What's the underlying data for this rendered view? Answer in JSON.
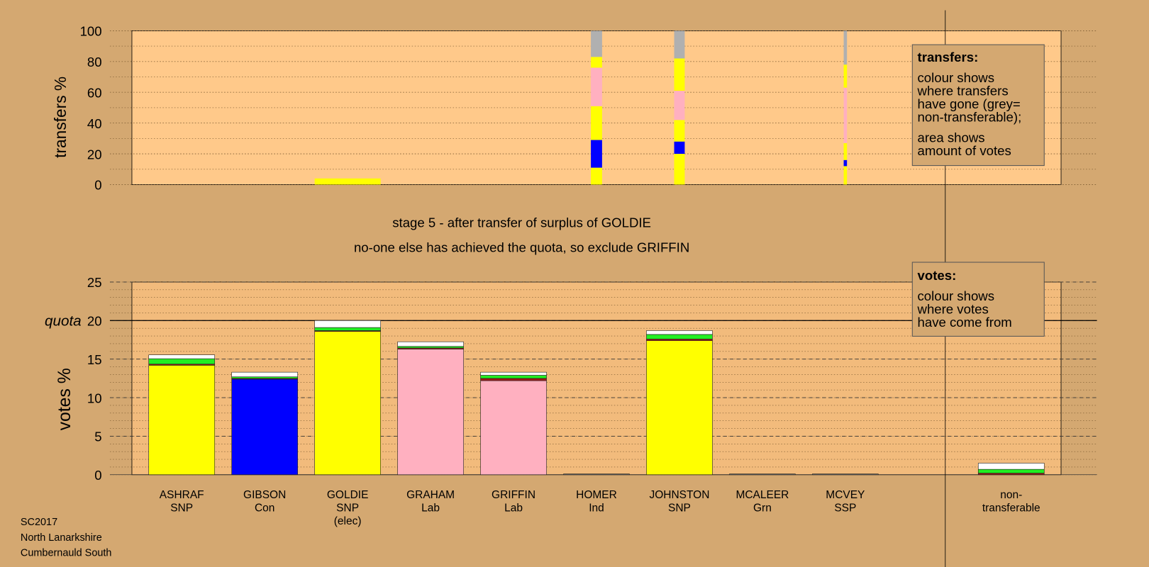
{
  "chart_data": {
    "type": "bar",
    "title": [
      "stage 5 - after transfer of surplus of GOLDIE",
      "no-one else has achieved the quota, so exclude GRIFFIN"
    ],
    "footer": [
      "SC2017",
      "North Lanarkshire",
      "Cumbernauld South"
    ],
    "transfers": {
      "ylabel": "transfers %",
      "ylim": [
        0,
        100
      ],
      "yticks": [
        0,
        20,
        40,
        60,
        80,
        100
      ],
      "minor_step": 10,
      "legend": {
        "title": "transfers:",
        "lines": [
          "colour shows",
          "where transfers",
          "have gone (grey=",
          "non-transferable);"
        ],
        "lines2": [
          "area shows",
          "amount of votes"
        ]
      },
      "columns": [
        {
          "category": 2,
          "width": 1.0,
          "segments": [
            {
              "color": "#ffff00",
              "value": 4
            }
          ]
        },
        {
          "category": 5,
          "width": 0.17,
          "segments": [
            {
              "color": "#ffff00",
              "value": 11
            },
            {
              "color": "#0000ff",
              "value": 18
            },
            {
              "color": "#ffff00",
              "value": 22
            },
            {
              "color": "#ffb0c0",
              "value": 25
            },
            {
              "color": "#ffff00",
              "value": 7
            },
            {
              "color": "#b0b0b0",
              "value": 17
            }
          ]
        },
        {
          "category": 6,
          "width": 0.16,
          "segments": [
            {
              "color": "#ffff00",
              "value": 20
            },
            {
              "color": "#0000ff",
              "value": 8
            },
            {
              "color": "#ffff00",
              "value": 14
            },
            {
              "color": "#ffb0c0",
              "value": 19
            },
            {
              "color": "#ffff00",
              "value": 21
            },
            {
              "color": "#b0b0b0",
              "value": 18
            }
          ]
        },
        {
          "category": 8,
          "width": 0.05,
          "segments": [
            {
              "color": "#ffff00",
              "value": 12
            },
            {
              "color": "#0000ff",
              "value": 4
            },
            {
              "color": "#ffff00",
              "value": 11
            },
            {
              "color": "#ffb0c0",
              "value": 36
            },
            {
              "color": "#ffff00",
              "value": 15
            },
            {
              "color": "#b0b0b0",
              "value": 22
            }
          ]
        }
      ]
    },
    "votes": {
      "ylabel": "votes %",
      "ylim": [
        0,
        25
      ],
      "yticks": [
        0,
        5,
        10,
        15,
        20,
        25
      ],
      "minor_step": 1,
      "quota": {
        "value": 20,
        "label": "quota"
      },
      "legend": {
        "title": "votes:",
        "lines": [
          "colour shows",
          "where votes",
          "have come from"
        ]
      },
      "categories": [
        [
          "ASHRAF",
          "SNP"
        ],
        [
          "GIBSON",
          "Con"
        ],
        [
          "GOLDIE",
          "SNP",
          "(elec)"
        ],
        [
          "GRAHAM",
          "Lab"
        ],
        [
          "GRIFFIN",
          "Lab"
        ],
        [
          "HOMER",
          "Ind"
        ],
        [
          "JOHNSTON",
          "SNP"
        ],
        [
          "MCALEER",
          "Grn"
        ],
        [
          "MCVEY",
          "SSP"
        ],
        null,
        [
          "non-",
          "transferable"
        ]
      ],
      "series": [
        {
          "colors": [
            "#ffff00",
            "#0000ff",
            "#ffff00",
            "#ffb0c0",
            "#ffb0c0",
            "#808080",
            "#ffff00",
            "#808080",
            "#808080",
            null,
            "#808080"
          ],
          "values": [
            14.2,
            12.4,
            18.6,
            16.3,
            12.2,
            0.1,
            17.4,
            0.1,
            0.1,
            null,
            0
          ]
        },
        {
          "color": "#a01818",
          "values": [
            0.15,
            0.1,
            0.1,
            0.15,
            0.3,
            0,
            0.2,
            0,
            0,
            null,
            0.2
          ]
        },
        {
          "color": "#22ee22",
          "values": [
            0.7,
            0.2,
            0.4,
            0.2,
            0.4,
            0,
            0.6,
            0,
            0,
            null,
            0.5
          ]
        },
        {
          "color": "#ffffff",
          "values": [
            0.5,
            0.6,
            0.9,
            0.6,
            0.4,
            0,
            0.5,
            0,
            0,
            null,
            0.8
          ]
        }
      ]
    }
  }
}
